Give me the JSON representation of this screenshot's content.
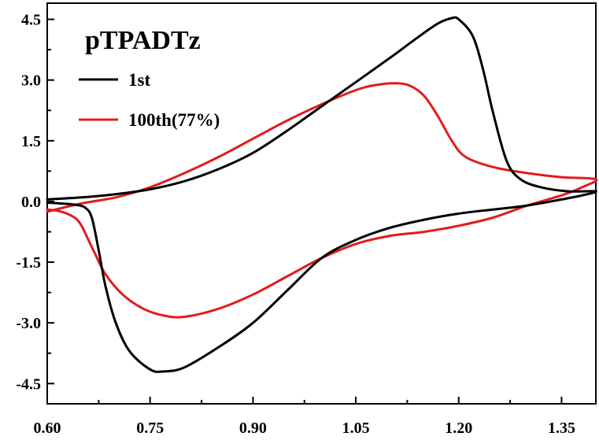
{
  "chart_data": {
    "type": "line",
    "title": "pTPADTz",
    "xlabel": "",
    "ylabel": "",
    "xlim": [
      0.6,
      1.4
    ],
    "ylim": [
      -5.0,
      4.9
    ],
    "grid": false,
    "legend_position": "top-left",
    "xticks": [
      0.6,
      0.75,
      0.9,
      1.05,
      1.2,
      1.35
    ],
    "xtick_labels": [
      "0.60",
      "0.75",
      "0.90",
      "1.05",
      "1.20",
      "1.35"
    ],
    "yticks": [
      4.5,
      3.0,
      1.5,
      0.0,
      -1.5,
      -3.0,
      -4.5
    ],
    "ytick_labels": [
      "4.5",
      "3.0",
      "1.5",
      "0.0",
      "-1.5",
      "-3.0",
      "-4.5"
    ],
    "series": [
      {
        "name": "1st",
        "color": "#000000",
        "x": [
          0.6,
          0.65,
          0.7,
          0.75,
          0.8,
          0.85,
          0.9,
          0.95,
          1.0,
          1.05,
          1.1,
          1.14,
          1.17,
          1.19,
          1.2,
          1.22,
          1.235,
          1.25,
          1.27,
          1.29,
          1.32,
          1.36,
          1.4,
          1.38,
          1.35,
          1.3,
          1.25,
          1.2,
          1.15,
          1.1,
          1.05,
          1.0,
          0.95,
          0.9,
          0.85,
          0.8,
          0.77,
          0.75,
          0.72,
          0.7,
          0.685,
          0.675,
          0.665,
          0.655,
          0.64,
          0.62,
          0.6
        ],
        "y": [
          0.05,
          0.1,
          0.18,
          0.3,
          0.5,
          0.8,
          1.2,
          1.75,
          2.35,
          2.95,
          3.55,
          4.05,
          4.4,
          4.53,
          4.5,
          4.1,
          3.3,
          2.2,
          1.0,
          0.55,
          0.35,
          0.25,
          0.25,
          0.15,
          0.05,
          -0.1,
          -0.2,
          -0.3,
          -0.45,
          -0.65,
          -0.95,
          -1.4,
          -2.2,
          -3.0,
          -3.6,
          -4.1,
          -4.2,
          -4.15,
          -3.7,
          -3.0,
          -2.1,
          -1.2,
          -0.4,
          -0.15,
          -0.08,
          -0.05,
          -0.03
        ]
      },
      {
        "name": "100th(77%)",
        "color": "#e41a1c",
        "x": [
          0.6,
          0.65,
          0.7,
          0.75,
          0.8,
          0.85,
          0.9,
          0.95,
          1.0,
          1.05,
          1.08,
          1.11,
          1.13,
          1.15,
          1.17,
          1.19,
          1.21,
          1.25,
          1.3,
          1.35,
          1.4,
          1.38,
          1.35,
          1.3,
          1.25,
          1.2,
          1.15,
          1.1,
          1.05,
          1.0,
          0.95,
          0.9,
          0.85,
          0.8,
          0.77,
          0.74,
          0.71,
          0.685,
          0.67,
          0.66,
          0.65,
          0.64,
          0.62,
          0.6
        ],
        "y": [
          -0.25,
          -0.05,
          0.1,
          0.35,
          0.7,
          1.1,
          1.55,
          2.0,
          2.4,
          2.75,
          2.88,
          2.92,
          2.85,
          2.6,
          2.1,
          1.5,
          1.1,
          0.85,
          0.7,
          0.6,
          0.55,
          0.35,
          0.15,
          -0.1,
          -0.4,
          -0.6,
          -0.75,
          -0.85,
          -1.05,
          -1.4,
          -1.85,
          -2.3,
          -2.65,
          -2.85,
          -2.82,
          -2.65,
          -2.3,
          -1.8,
          -1.3,
          -0.95,
          -0.6,
          -0.4,
          -0.25,
          -0.2
        ]
      }
    ]
  }
}
